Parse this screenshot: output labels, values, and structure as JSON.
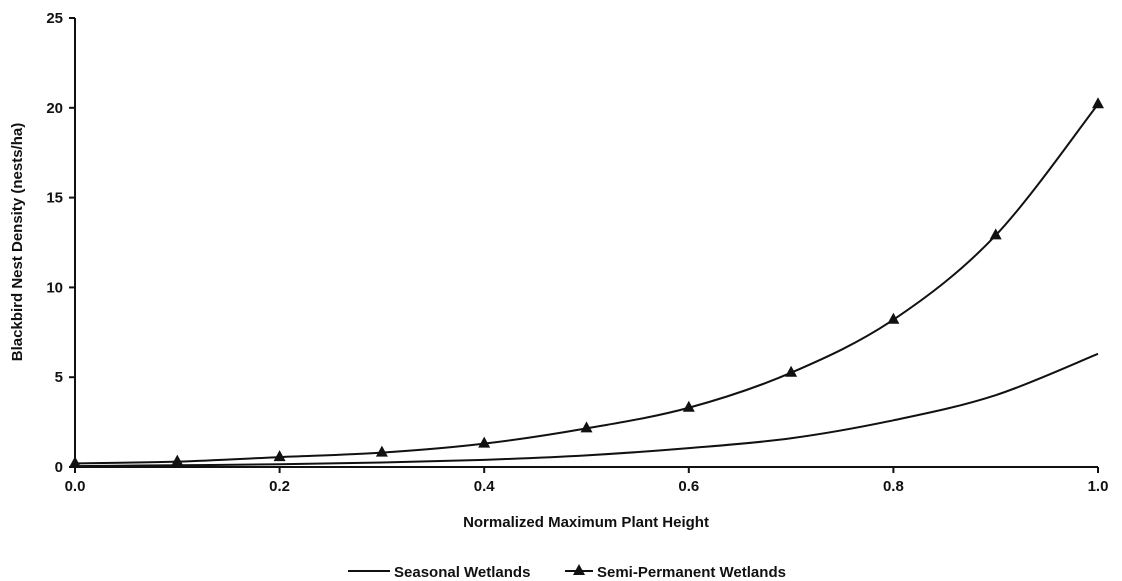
{
  "chart_data": {
    "type": "line",
    "title": "",
    "xlabel": "Normalized Maximum Plant Height",
    "ylabel": "Blackbird Nest Density (nests/ha)",
    "xlim": [
      0.0,
      1.0
    ],
    "ylim": [
      0,
      25
    ],
    "x_ticks": [
      "0.0",
      "0.2",
      "0.4",
      "0.6",
      "0.8",
      "1.0"
    ],
    "y_ticks": [
      "0",
      "5",
      "10",
      "15",
      "20",
      "25"
    ],
    "grid": false,
    "legend_position": "bottom",
    "series": [
      {
        "name": "Seasonal Wetlands",
        "marker": "none",
        "color": "#111111",
        "x": [
          0.0,
          0.1,
          0.2,
          0.3,
          0.4,
          0.5,
          0.6,
          0.7,
          0.8,
          0.9,
          1.0
        ],
        "y": [
          0.05,
          0.1,
          0.15,
          0.25,
          0.4,
          0.65,
          1.05,
          1.6,
          2.6,
          4.0,
          6.3
        ]
      },
      {
        "name": "Semi-Permanent Wetlands",
        "marker": "triangle",
        "color": "#111111",
        "x": [
          0.0,
          0.1,
          0.2,
          0.3,
          0.4,
          0.5,
          0.6,
          0.7,
          0.8,
          0.9,
          1.0
        ],
        "y": [
          0.2,
          0.3,
          0.55,
          0.8,
          1.3,
          2.15,
          3.3,
          5.25,
          8.2,
          12.9,
          20.2
        ]
      }
    ]
  }
}
